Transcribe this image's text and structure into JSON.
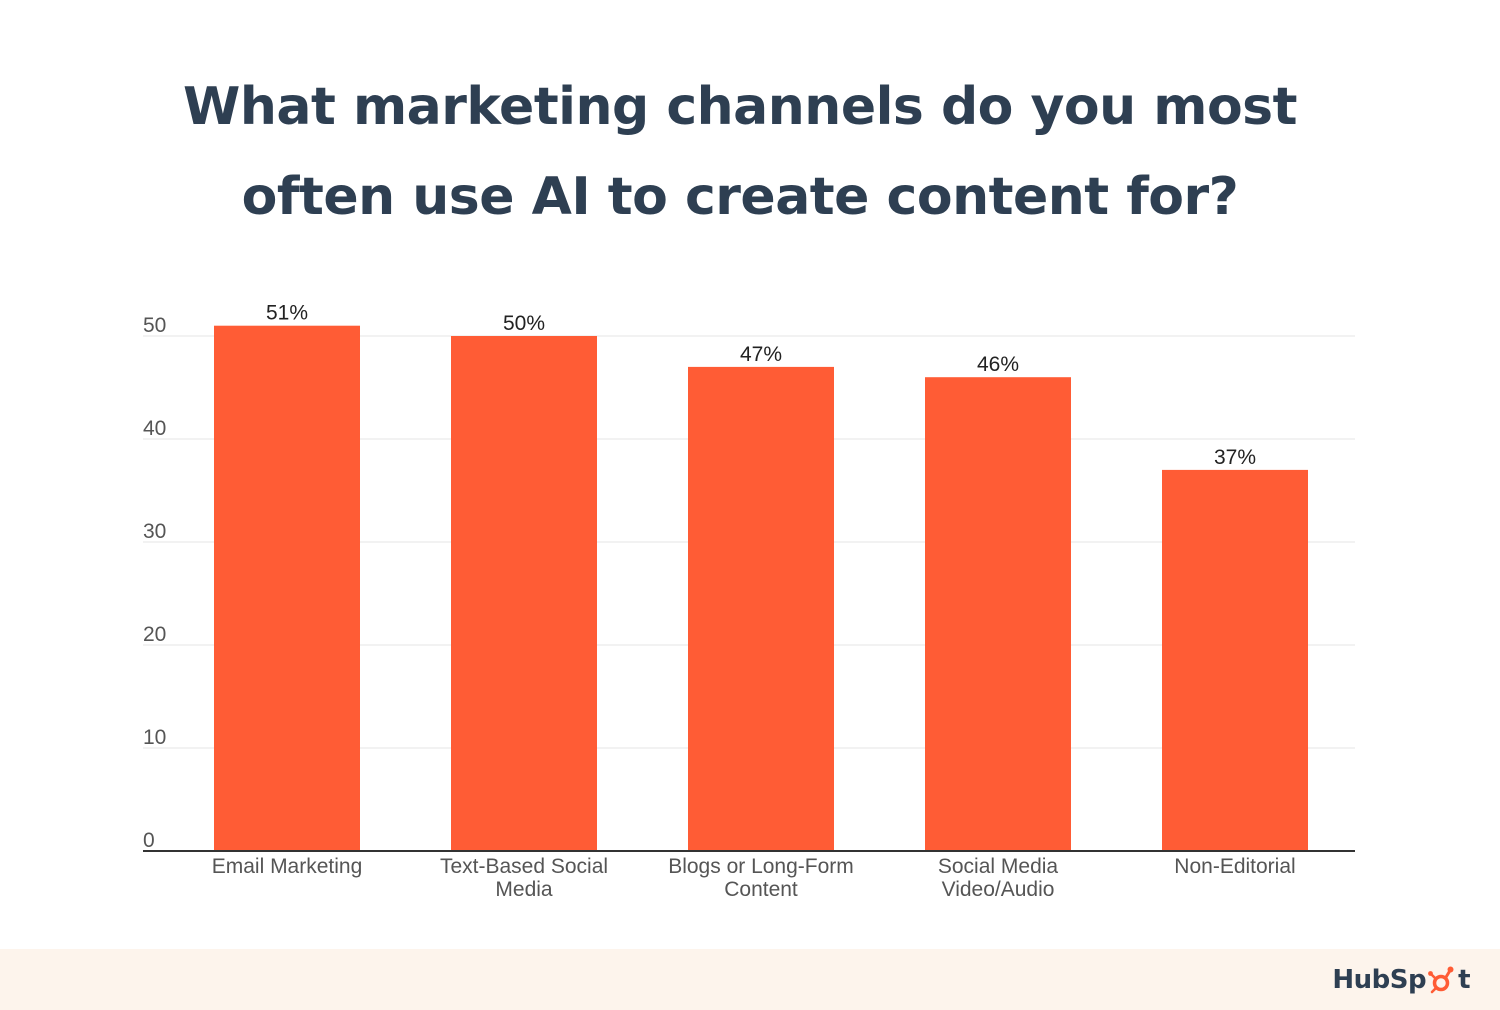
{
  "title": {
    "line1": "What marketing channels do you most",
    "line2": "often use AI to create content for?"
  },
  "brand": {
    "name_before": "HubSp",
    "name_after": "t",
    "logo_icon": "hubspot-sprocket-icon",
    "accent_color": "#ff5c35"
  },
  "colors": {
    "bar": "#ff5c35",
    "title": "#2e3f52",
    "axis_text": "#555555",
    "grid": "#e6e6e6",
    "footer_bg": "#fdf4ec"
  },
  "chart_data": {
    "type": "bar",
    "categories": [
      [
        "Email Marketing"
      ],
      [
        "Text-Based Social",
        "Media"
      ],
      [
        "Blogs or Long-Form",
        "Content"
      ],
      [
        "Social Media",
        "Video/Audio"
      ],
      [
        "Non-Editorial"
      ]
    ],
    "values": [
      51,
      50,
      47,
      46,
      37
    ],
    "data_labels": [
      "51%",
      "50%",
      "47%",
      "46%",
      "37%"
    ],
    "yticks": [
      0,
      10,
      20,
      30,
      40,
      50
    ],
    "ylim": [
      0,
      50
    ],
    "grid": true,
    "legend": "none",
    "xlabel": "",
    "ylabel": ""
  }
}
